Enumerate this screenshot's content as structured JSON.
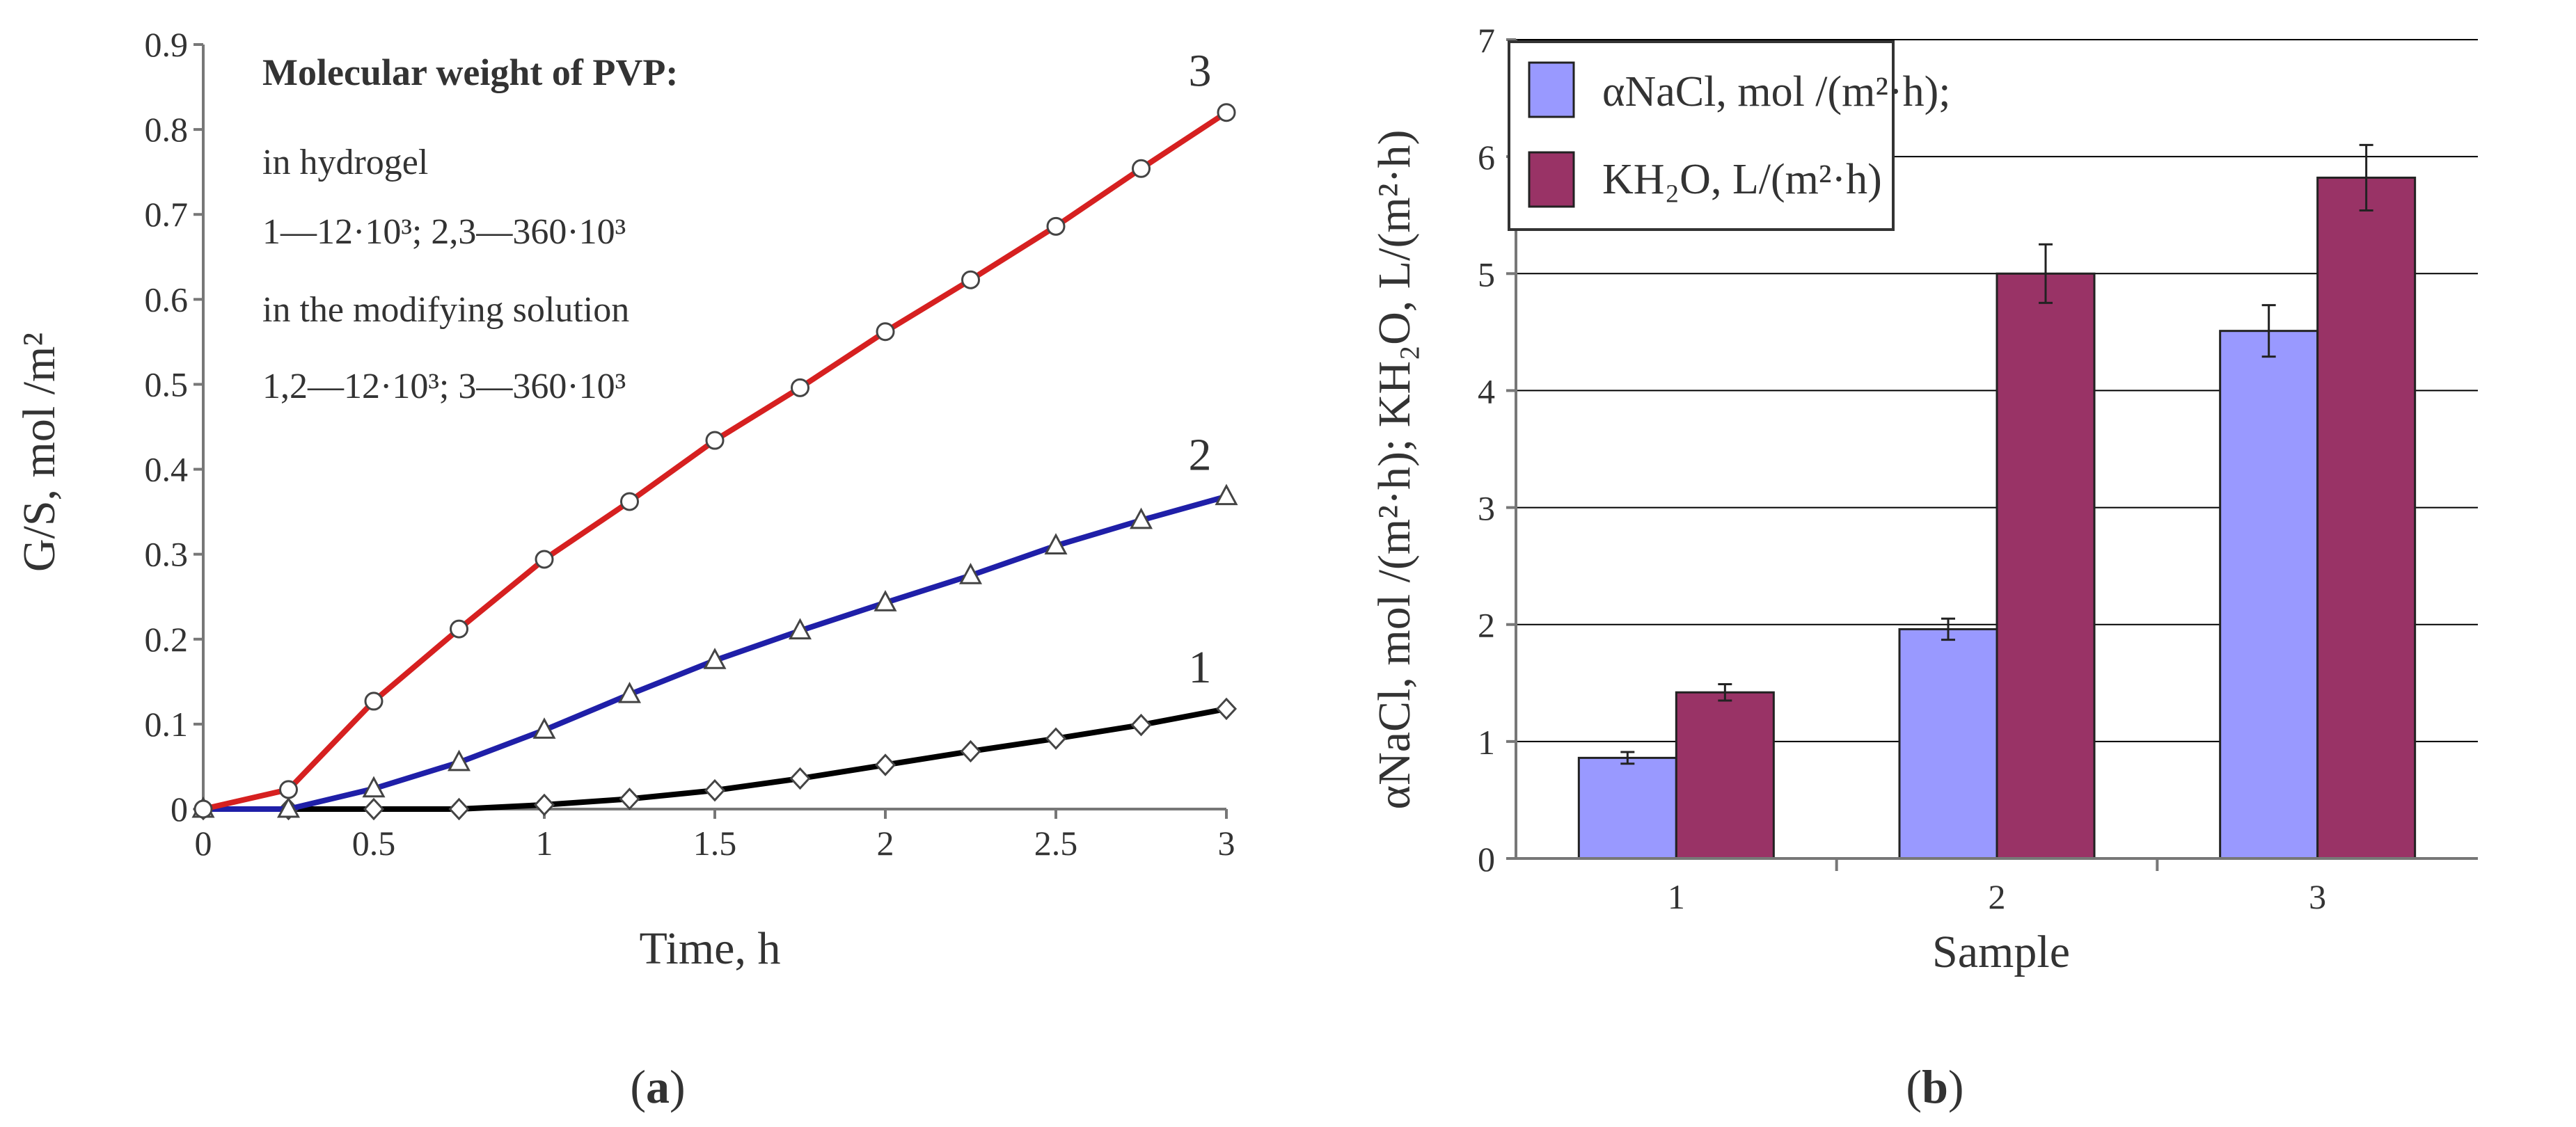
{
  "chart_data": [
    {
      "type": "line",
      "panel_label": "a",
      "xlabel": "Time, h",
      "ylabel": "G/S, mol /m²",
      "xlim": [
        0,
        3
      ],
      "ylim": [
        0,
        0.9
      ],
      "x_ticks": [
        "0",
        "0.5",
        "1",
        "1.5",
        "2",
        "2.5",
        "3"
      ],
      "y_ticks": [
        "0",
        "0.1",
        "0.2",
        "0.3",
        "0.4",
        "0.5",
        "0.6",
        "0.7",
        "0.8",
        "0.9"
      ],
      "x": [
        0,
        0.25,
        0.5,
        0.75,
        1,
        1.25,
        1.5,
        1.75,
        2,
        2.25,
        2.5,
        2.75,
        3
      ],
      "series": [
        {
          "name": "1",
          "marker": "diamond",
          "color": "#000000",
          "values": [
            0,
            0,
            0,
            0,
            0.005,
            0.012,
            0.022,
            0.036,
            0.052,
            0.068,
            0.083,
            0.099,
            0.118
          ]
        },
        {
          "name": "2",
          "marker": "triangle",
          "color": "#1f1fa8",
          "values": [
            0,
            0,
            0.024,
            0.055,
            0.093,
            0.135,
            0.175,
            0.21,
            0.243,
            0.275,
            0.31,
            0.34,
            0.368
          ]
        },
        {
          "name": "3",
          "marker": "circle",
          "color": "#d62020",
          "values": [
            0,
            0.023,
            0.127,
            0.212,
            0.294,
            0.362,
            0.434,
            0.496,
            0.562,
            0.623,
            0.686,
            0.754,
            0.82
          ]
        }
      ],
      "annotations": {
        "title": "Molecular weight of PVP:",
        "lines": [
          "in hydrogel",
          "1—12·10³; 2,3—360·10³",
          "in the modifying solution",
          "1,2—12·10³; 3—360·10³"
        ]
      }
    },
    {
      "type": "bar",
      "panel_label": "b",
      "xlabel": "Sample",
      "ylabel": "αNaCl, mol /(m²·h);  KH₂O, L/(m²·h)",
      "ylim": [
        0,
        7
      ],
      "y_ticks": [
        "0",
        "1",
        "2",
        "3",
        "4",
        "5",
        "6",
        "7"
      ],
      "categories": [
        "1",
        "2",
        "3"
      ],
      "series": [
        {
          "name": "αNaCl, mol /(m²·h);",
          "color": "#9999ff",
          "values": [
            0.86,
            1.96,
            4.51
          ],
          "errors": [
            0.05,
            0.09,
            0.22
          ]
        },
        {
          "name": "KH₂O, L/(m²·h)",
          "color": "#993366",
          "values": [
            1.42,
            5.0,
            5.82
          ],
          "errors": [
            0.07,
            0.25,
            0.28
          ]
        }
      ],
      "grid": true
    }
  ],
  "colors": {
    "axis": "#777777",
    "text": "#333333",
    "grid": "#000000"
  }
}
